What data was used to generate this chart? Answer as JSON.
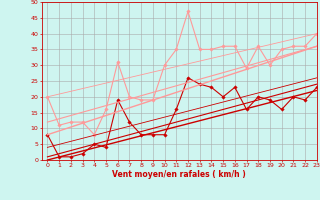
{
  "title": "",
  "xlabel": "Vent moyen/en rafales ( km/h )",
  "ylabel": "",
  "bg_color": "#cef5f0",
  "grid_color": "#aaaaaa",
  "xlim": [
    -0.5,
    23
  ],
  "ylim": [
    0,
    50
  ],
  "yticks": [
    0,
    5,
    10,
    15,
    20,
    25,
    30,
    35,
    40,
    45,
    50
  ],
  "xticks": [
    0,
    1,
    2,
    3,
    4,
    5,
    6,
    7,
    8,
    9,
    10,
    11,
    12,
    13,
    14,
    15,
    16,
    17,
    18,
    19,
    20,
    21,
    22,
    23
  ],
  "lines": [
    {
      "x": [
        0,
        1,
        2,
        3,
        4,
        5,
        6,
        7,
        8,
        9,
        10,
        11,
        12,
        13,
        14,
        15,
        16,
        17,
        18,
        19,
        20,
        21,
        22,
        23
      ],
      "y": [
        8,
        1,
        1,
        2,
        5,
        4,
        19,
        12,
        8,
        8,
        8,
        16,
        26,
        24,
        23,
        20,
        23,
        16,
        20,
        19,
        16,
        20,
        19,
        23
      ],
      "color": "#cc0000",
      "lw": 0.8,
      "marker": "D",
      "ms": 1.8
    },
    {
      "x": [
        0,
        1,
        2,
        3,
        4,
        5,
        6,
        7,
        8,
        9,
        10,
        11,
        12,
        13,
        14,
        15,
        16,
        17,
        18,
        19,
        20,
        21,
        22,
        23
      ],
      "y": [
        20,
        11,
        12,
        12,
        8,
        16,
        31,
        20,
        19,
        19,
        30,
        35,
        47,
        35,
        35,
        36,
        36,
        29,
        36,
        30,
        35,
        36,
        36,
        40
      ],
      "color": "#ff9999",
      "lw": 0.8,
      "marker": "D",
      "ms": 1.8
    },
    {
      "x": [
        0,
        23
      ],
      "y": [
        0,
        22
      ],
      "color": "#cc0000",
      "lw": 1.0
    },
    {
      "x": [
        0,
        23
      ],
      "y": [
        1,
        24
      ],
      "color": "#cc0000",
      "lw": 0.8
    },
    {
      "x": [
        0,
        23
      ],
      "y": [
        4,
        26
      ],
      "color": "#cc0000",
      "lw": 0.6
    },
    {
      "x": [
        0,
        23
      ],
      "y": [
        8,
        36
      ],
      "color": "#ff9999",
      "lw": 1.0
    },
    {
      "x": [
        0,
        23
      ],
      "y": [
        12,
        36
      ],
      "color": "#ff9999",
      "lw": 0.8
    },
    {
      "x": [
        0,
        23
      ],
      "y": [
        20,
        40
      ],
      "color": "#ff9999",
      "lw": 0.6
    }
  ]
}
